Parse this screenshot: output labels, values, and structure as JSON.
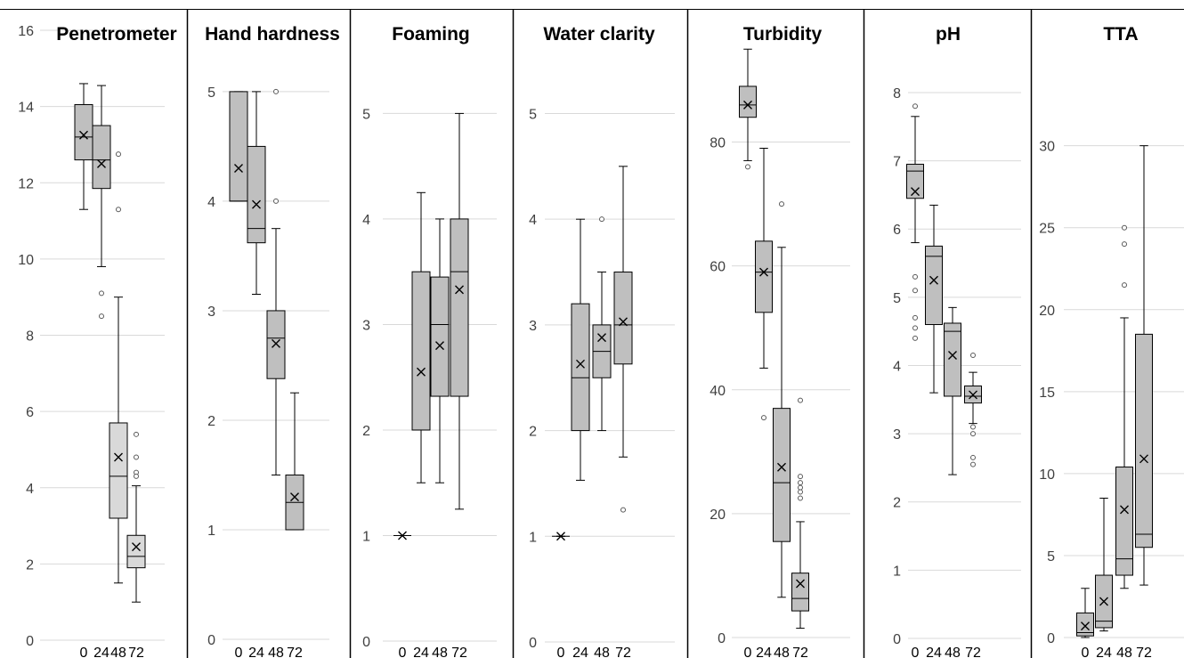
{
  "chart_data": [
    {
      "type": "box",
      "title": "Penetrometer",
      "categories": [
        "0",
        "24",
        "48",
        "72"
      ],
      "ylim": [
        0,
        16
      ],
      "yticks": [
        0,
        2,
        4,
        6,
        8,
        10,
        12,
        14,
        16
      ],
      "grid": true,
      "boxes": [
        {
          "whisker_low": 11.3,
          "q1": 12.6,
          "median": 13.2,
          "q3": 14.05,
          "whisker_high": 14.6,
          "mean": 13.25,
          "outliers": []
        },
        {
          "whisker_low": 9.8,
          "q1": 11.85,
          "median": 12.6,
          "q3": 13.5,
          "whisker_high": 14.55,
          "mean": 12.5,
          "outliers": [
            9.1,
            8.5
          ]
        },
        {
          "whisker_low": 1.5,
          "q1": 3.2,
          "median": 4.3,
          "q3": 5.7,
          "whisker_high": 9.0,
          "mean": 4.8,
          "outliers": [
            12.75,
            11.3
          ]
        },
        {
          "whisker_low": 1.0,
          "q1": 1.9,
          "median": 2.2,
          "q3": 2.75,
          "whisker_high": 4.05,
          "mean": 2.45,
          "outliers": [
            5.4,
            4.8,
            4.4,
            4.3
          ]
        }
      ]
    },
    {
      "type": "box",
      "title": "Hand hardness",
      "categories": [
        "0",
        "24",
        "48",
        "72"
      ],
      "ylim": [
        0,
        5.3
      ],
      "yticks": [
        0,
        1,
        2,
        3,
        4,
        5
      ],
      "grid": true,
      "boxes": [
        {
          "whisker_low": 4.0,
          "q1": 4.0,
          "median": 4.0,
          "q3": 5.0,
          "whisker_high": 5.0,
          "mean": 4.3,
          "outliers": []
        },
        {
          "whisker_low": 3.15,
          "q1": 3.62,
          "median": 3.75,
          "q3": 4.5,
          "whisker_high": 5.0,
          "mean": 3.97,
          "outliers": []
        },
        {
          "whisker_low": 1.5,
          "q1": 2.38,
          "median": 2.75,
          "q3": 3.0,
          "whisker_high": 3.75,
          "mean": 2.7,
          "outliers": [
            5.0,
            4.0
          ]
        },
        {
          "whisker_low": 1.0,
          "q1": 1.0,
          "median": 1.25,
          "q3": 1.5,
          "whisker_high": 2.25,
          "mean": 1.3,
          "outliers": []
        }
      ]
    },
    {
      "type": "box",
      "title": "Foaming",
      "categories": [
        "0",
        "24",
        "48",
        "72"
      ],
      "ylim": [
        0,
        5.4
      ],
      "yticks": [
        0,
        1,
        2,
        3,
        4,
        5
      ],
      "grid": true,
      "boxes": [
        {
          "whisker_low": 1.0,
          "q1": 1.0,
          "median": 1.0,
          "q3": 1.0,
          "whisker_high": 1.0,
          "mean": 1.0,
          "outliers": []
        },
        {
          "whisker_low": 1.5,
          "q1": 2.0,
          "median": 2.0,
          "q3": 3.5,
          "whisker_high": 4.25,
          "mean": 2.55,
          "outliers": []
        },
        {
          "whisker_low": 1.5,
          "q1": 2.32,
          "median": 3.0,
          "q3": 3.45,
          "whisker_high": 4.0,
          "mean": 2.8,
          "outliers": []
        },
        {
          "whisker_low": 1.25,
          "q1": 2.32,
          "median": 3.5,
          "q3": 4.0,
          "whisker_high": 5.0,
          "mean": 3.33,
          "outliers": []
        }
      ]
    },
    {
      "type": "box",
      "title": "Water clarity",
      "categories": [
        "0",
        "24",
        "48",
        "72"
      ],
      "ylim": [
        0,
        5.4
      ],
      "yticks": [
        0,
        1,
        2,
        3,
        4,
        5
      ],
      "grid": true,
      "boxes": [
        {
          "whisker_low": 1.0,
          "q1": 1.0,
          "median": 1.0,
          "q3": 1.0,
          "whisker_high": 1.0,
          "mean": 1.0,
          "outliers": []
        },
        {
          "whisker_low": 1.53,
          "q1": 2.0,
          "median": 2.5,
          "q3": 3.2,
          "whisker_high": 4.0,
          "mean": 2.63,
          "outliers": []
        },
        {
          "whisker_low": 2.0,
          "q1": 2.5,
          "median": 2.75,
          "q3": 3.0,
          "whisker_high": 3.5,
          "mean": 2.88,
          "outliers": [
            4.0
          ]
        },
        {
          "whisker_low": 1.75,
          "q1": 2.63,
          "median": 3.0,
          "q3": 3.5,
          "whisker_high": 4.5,
          "mean": 3.03,
          "outliers": [
            1.25
          ]
        }
      ]
    },
    {
      "type": "box",
      "title": "Turbidity",
      "categories": [
        "0",
        "24",
        "48",
        "72"
      ],
      "ylim": [
        0,
        90
      ],
      "yticks": [
        0,
        20,
        40,
        60,
        80
      ],
      "grid": true,
      "boxes": [
        {
          "whisker_low": 77,
          "q1": 84,
          "median": 86,
          "q3": 89,
          "whisker_high": 95,
          "mean": 86,
          "outliers": [
            76
          ]
        },
        {
          "whisker_low": 43.5,
          "q1": 52.5,
          "median": 59,
          "q3": 64,
          "whisker_high": 79,
          "mean": 59,
          "outliers": [
            35.5
          ]
        },
        {
          "whisker_low": 6.5,
          "q1": 15.5,
          "median": 25,
          "q3": 37,
          "whisker_high": 63,
          "mean": 27.5,
          "outliers": [
            70
          ]
        },
        {
          "whisker_low": 1.5,
          "q1": 4.3,
          "median": 6.3,
          "q3": 10.4,
          "whisker_high": 18.7,
          "mean": 8.7,
          "outliers": [
            38.3,
            26,
            25,
            24.2,
            23.5,
            22.5
          ]
        }
      ]
    },
    {
      "type": "box",
      "title": "pH",
      "categories": [
        "0",
        "24",
        "48",
        "72"
      ],
      "ylim": [
        0,
        8.6
      ],
      "yticks": [
        0,
        1,
        2,
        3,
        4,
        5,
        6,
        7,
        8
      ],
      "grid": true,
      "boxes": [
        {
          "whisker_low": 5.8,
          "q1": 6.45,
          "median": 6.85,
          "q3": 6.95,
          "whisker_high": 7.65,
          "mean": 6.55,
          "outliers": [
            7.8,
            5.3,
            5.1,
            4.7,
            4.55,
            4.4
          ]
        },
        {
          "whisker_low": 3.6,
          "q1": 4.6,
          "median": 5.6,
          "q3": 5.75,
          "whisker_high": 6.35,
          "mean": 5.25,
          "outliers": []
        },
        {
          "whisker_low": 2.4,
          "q1": 3.55,
          "median": 4.5,
          "q3": 4.62,
          "whisker_high": 4.85,
          "mean": 4.15,
          "outliers": []
        },
        {
          "whisker_low": 3.15,
          "q1": 3.45,
          "median": 3.55,
          "q3": 3.7,
          "whisker_high": 3.9,
          "mean": 3.57,
          "outliers": [
            4.15,
            3.1,
            3.0,
            2.65,
            2.55
          ]
        }
      ]
    },
    {
      "type": "box",
      "title": "TTA",
      "categories": [
        "0",
        "24",
        "48",
        "72"
      ],
      "ylim": [
        0,
        34
      ],
      "yticks": [
        0,
        5,
        10,
        15,
        20,
        25,
        30
      ],
      "grid": true,
      "boxes": [
        {
          "whisker_low": 0.0,
          "q1": 0.1,
          "median": 0.3,
          "q3": 1.5,
          "whisker_high": 3.0,
          "mean": 0.7,
          "outliers": []
        },
        {
          "whisker_low": 0.4,
          "q1": 0.6,
          "median": 1.0,
          "q3": 3.8,
          "whisker_high": 8.5,
          "mean": 2.2,
          "outliers": []
        },
        {
          "whisker_low": 3.0,
          "q1": 3.8,
          "median": 4.8,
          "q3": 10.4,
          "whisker_high": 19.5,
          "mean": 7.8,
          "outliers": [
            25,
            24,
            21.5
          ]
        },
        {
          "whisker_low": 3.2,
          "q1": 5.5,
          "median": 6.3,
          "q3": 18.5,
          "whisker_high": 30,
          "mean": 10.9,
          "outliers": []
        }
      ]
    }
  ]
}
